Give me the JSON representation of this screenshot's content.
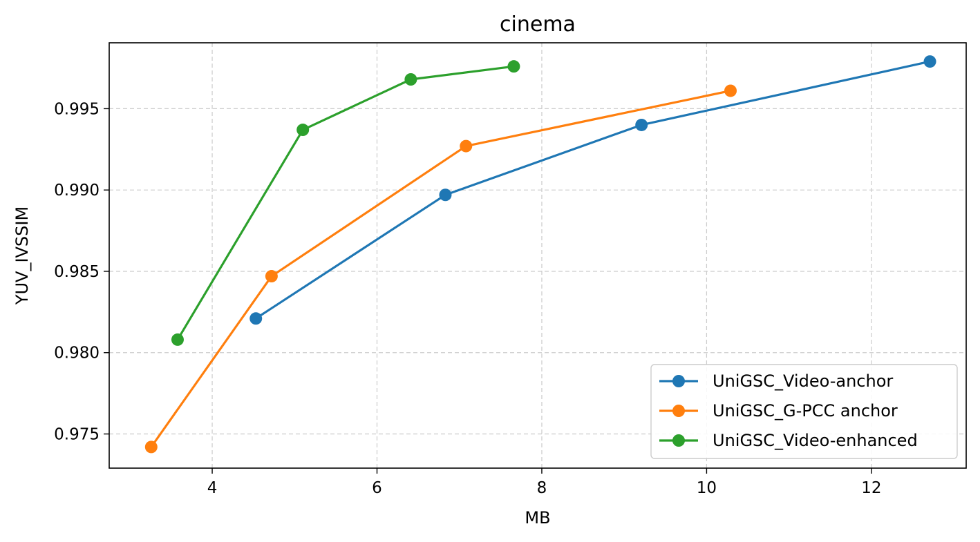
{
  "chart_data": {
    "type": "line",
    "title": "cinema",
    "xlabel": "MB",
    "ylabel": "YUV_IVSSIM",
    "xlim": [
      2.75,
      13.15
    ],
    "ylim": [
      0.9729,
      0.99905
    ],
    "xticks": [
      4,
      6,
      8,
      10,
      12
    ],
    "xtick_labels": [
      "4",
      "6",
      "8",
      "10",
      "12"
    ],
    "yticks": [
      0.975,
      0.98,
      0.985,
      0.99,
      0.995
    ],
    "ytick_labels": [
      "0.975",
      "0.980",
      "0.985",
      "0.990",
      "0.995"
    ],
    "grid": true,
    "legend_position": "bottom-right",
    "series": [
      {
        "name": "UniGSC_Video-anchor",
        "color": "#1f77b4",
        "x": [
          4.53,
          6.83,
          9.21,
          12.71
        ],
        "y": [
          0.9821,
          0.9897,
          0.994,
          0.9979
        ]
      },
      {
        "name": "UniGSC_G-PCC anchor",
        "color": "#ff7f0e",
        "x": [
          3.26,
          4.72,
          7.08,
          10.29
        ],
        "y": [
          0.9742,
          0.9847,
          0.9927,
          0.9961
        ]
      },
      {
        "name": "UniGSC_Video-enhanced",
        "color": "#2ca02c",
        "x": [
          3.58,
          5.1,
          6.41,
          7.66
        ],
        "y": [
          0.9808,
          0.9937,
          0.9968,
          0.9976
        ]
      }
    ]
  }
}
